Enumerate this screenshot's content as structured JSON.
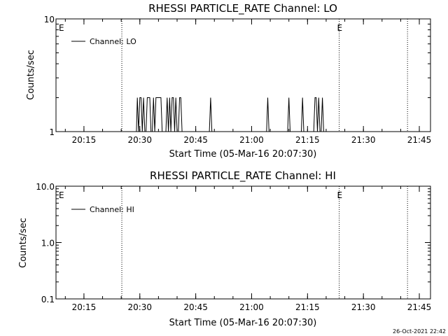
{
  "chart_data": [
    {
      "type": "line",
      "title": "RHESSI PARTICLE_RATE Channel: LO",
      "xlabel": "Start Time (05-Mar-16 20:07:30)",
      "ylabel": "Counts/sec",
      "yscale": "log",
      "ylim": [
        1,
        10
      ],
      "yticks": [
        "1",
        "10"
      ],
      "xlim_minutes": [
        20.12,
        21.48
      ],
      "xticks": [
        "20:15",
        "20:30",
        "20:45",
        "21:00",
        "21:15",
        "21:30",
        "21:45"
      ],
      "legend": "top-left",
      "series": [
        {
          "name": "Channel: LO",
          "x": [
            "20:29:05",
            "20:29:20",
            "20:29:40",
            "20:30:00",
            "20:30:20",
            "20:30:40",
            "20:31:00",
            "20:31:20",
            "20:31:40",
            "20:32:00",
            "20:32:20",
            "20:32:40",
            "20:33:00",
            "20:33:20",
            "20:33:40",
            "20:34:00",
            "20:34:20",
            "20:34:40",
            "20:35:00",
            "20:35:20",
            "20:35:40",
            "20:36:00",
            "20:36:20",
            "20:36:40",
            "20:37:00",
            "20:37:20",
            "20:37:40",
            "20:38:00",
            "20:38:20",
            "20:38:40",
            "20:39:00",
            "20:39:20",
            "20:39:40",
            "20:40:00",
            "20:40:20",
            "20:40:40",
            "20:41:00",
            "20:41:20",
            "20:41:40",
            "20:42:00",
            "20:42:20",
            "20:42:40",
            "20:43:00",
            "20:48:40",
            "20:49:00",
            "20:49:20",
            "21:04:00",
            "21:04:20",
            "21:04:40",
            "21:09:40",
            "21:10:00",
            "21:10:20",
            "21:13:20",
            "21:13:40",
            "21:14:00",
            "21:16:40",
            "21:17:00",
            "21:17:20",
            "21:17:40",
            "21:18:00",
            "21:18:20",
            "21:18:40",
            "21:19:00",
            "21:19:20",
            "21:19:40"
          ],
          "y": [
            1,
            2,
            1,
            2,
            2,
            1,
            2,
            1,
            1,
            2,
            2,
            2,
            1,
            1,
            2,
            1,
            2,
            2,
            2,
            2,
            2,
            1,
            1,
            1,
            1,
            2,
            1,
            2,
            1,
            2,
            2,
            1,
            2,
            1,
            1,
            2,
            2,
            1,
            1,
            1,
            1,
            1,
            1,
            1,
            2,
            1,
            1,
            2,
            1,
            1,
            2,
            1,
            1,
            2,
            1,
            1,
            2,
            2,
            1,
            2,
            1,
            1,
            2,
            1,
            1
          ]
        }
      ],
      "annotations": [
        {
          "x": "20:09:00",
          "text": "E"
        },
        {
          "x": "21:23:40",
          "text": "E"
        }
      ],
      "vlines": [
        "20:25:10",
        "21:23:30",
        "21:41:50"
      ]
    },
    {
      "type": "line",
      "title": "RHESSI PARTICLE_RATE Channel: HI",
      "xlabel": "Start Time (05-Mar-16 20:07:30)",
      "ylabel": "Counts/sec",
      "yscale": "log",
      "ylim": [
        0.1,
        10
      ],
      "yticks": [
        "0.1",
        "1.0",
        "10.0"
      ],
      "xticks": [
        "20:15",
        "20:30",
        "20:45",
        "21:00",
        "21:15",
        "21:30",
        "21:45"
      ],
      "legend": "top-left",
      "series": [
        {
          "name": "Channel: HI",
          "x": [],
          "y": []
        }
      ],
      "annotations": [
        {
          "x": "20:09:00",
          "text": "E"
        },
        {
          "x": "21:23:40",
          "text": "E"
        }
      ],
      "vlines": [
        "20:25:10",
        "21:23:30",
        "21:41:50"
      ]
    }
  ],
  "timestamp": "26-Oct-2021 22:42"
}
